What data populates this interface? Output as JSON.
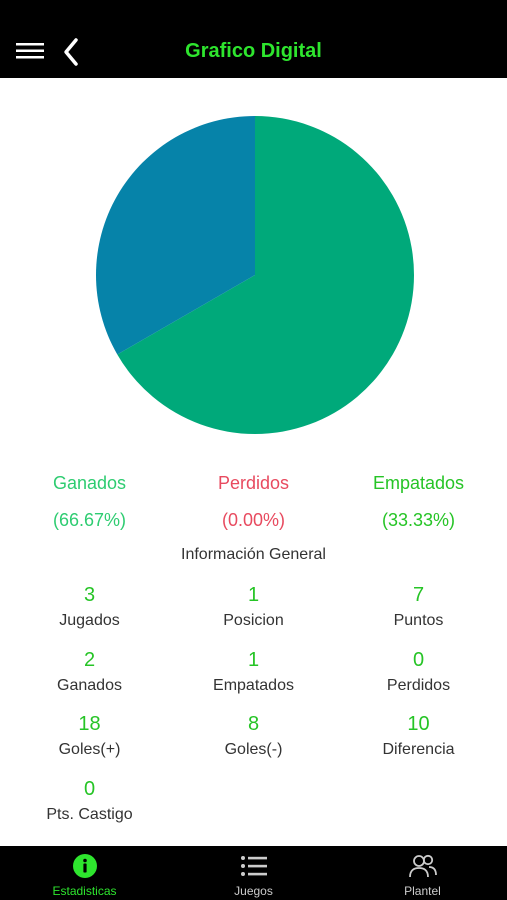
{
  "header": {
    "title": "Grafico Digital"
  },
  "chart_data": {
    "type": "pie",
    "slices": [
      {
        "label": "Ganados",
        "value": 66.67,
        "color": "#00a97a"
      },
      {
        "label": "Perdidos",
        "value": 0.0,
        "color": "#e84a5f"
      },
      {
        "label": "Empatados",
        "value": 33.33,
        "color": "#0683a9"
      }
    ]
  },
  "results": [
    {
      "label": "Ganados",
      "pct": "(66.67%)",
      "color": "#2ecc71"
    },
    {
      "label": "Perdidos",
      "pct": "(0.00%)",
      "color": "#e84a5f"
    },
    {
      "label": "Empatados",
      "pct": "(33.33%)",
      "color": "#26c426"
    }
  ],
  "section_title": "Información General",
  "stats": [
    {
      "value": "3",
      "label": "Jugados"
    },
    {
      "value": "1",
      "label": "Posicion"
    },
    {
      "value": "7",
      "label": "Puntos"
    },
    {
      "value": "2",
      "label": "Ganados"
    },
    {
      "value": "1",
      "label": "Empatados"
    },
    {
      "value": "0",
      "label": "Perdidos"
    },
    {
      "value": "18",
      "label": "Goles(+)"
    },
    {
      "value": "8",
      "label": "Goles(-)"
    },
    {
      "value": "10",
      "label": "Diferencia"
    },
    {
      "value": "0",
      "label": "Pts. Castigo"
    }
  ],
  "nav": [
    {
      "label": "Estadisticas",
      "icon": "info-icon",
      "active": true
    },
    {
      "label": "Juegos",
      "icon": "list-icon",
      "active": false
    },
    {
      "label": "Plantel",
      "icon": "users-icon",
      "active": false
    }
  ],
  "colors": {
    "accent": "#2ee52e",
    "nav_active": "#2ee52e",
    "nav_inactive": "#cccccc"
  }
}
